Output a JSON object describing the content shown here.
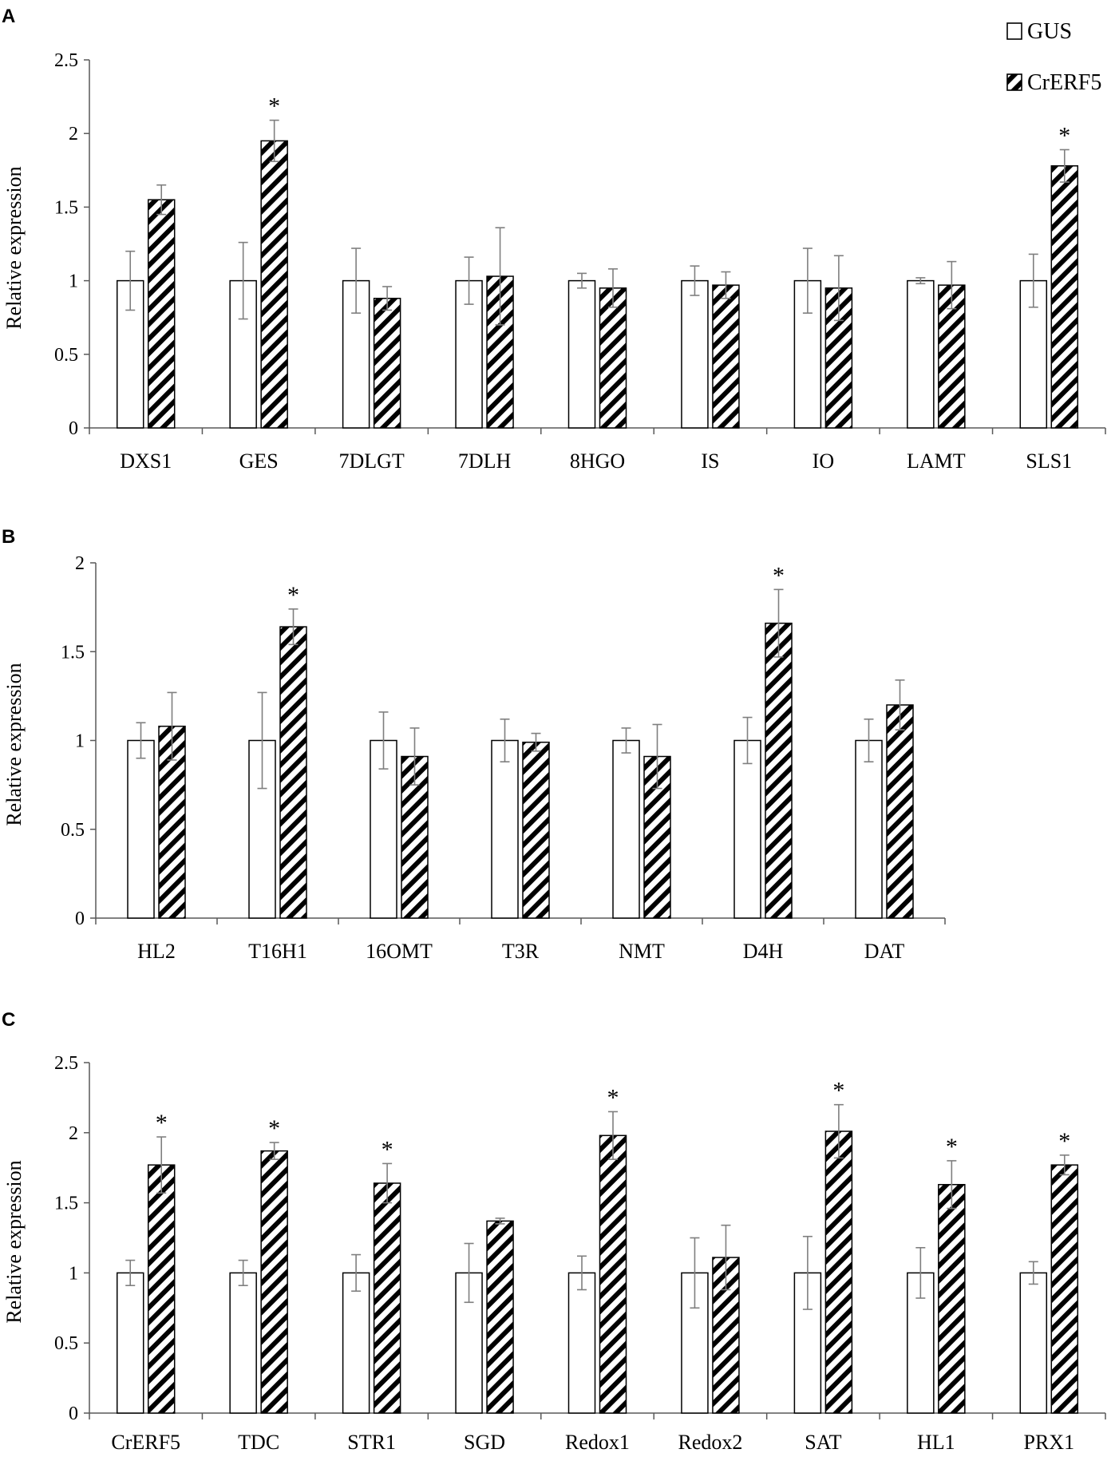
{
  "figure": {
    "legend": {
      "gus": "GUS",
      "crerf5": "CrERF5"
    },
    "colors": {
      "text": "#000000",
      "axis": "#595959",
      "bar_stroke": "#000000",
      "errorbar": "#7f7f7f",
      "gus_fill": "#ffffff",
      "hatch": "#000000"
    }
  },
  "chart_data": [
    {
      "panel": "A",
      "type": "bar",
      "ylabel": "Relative expression",
      "ylim": [
        0,
        2.5
      ],
      "yticks": [
        "0",
        "0.5",
        "1",
        "1.5",
        "2",
        "2.5"
      ],
      "categories": [
        "DXS1",
        "GES",
        "7DLGT",
        "7DLH",
        "8HGO",
        "IS",
        "IO",
        "LAMT",
        "SLS1"
      ],
      "series": [
        {
          "name": "GUS",
          "values": [
            1,
            1,
            1,
            1,
            1,
            1,
            1,
            1,
            1
          ],
          "errors": [
            0.2,
            0.26,
            0.22,
            0.16,
            0.05,
            0.1,
            0.22,
            0.02,
            0.18
          ]
        },
        {
          "name": "CrERF5",
          "values": [
            1.55,
            1.95,
            0.88,
            1.03,
            0.95,
            0.97,
            0.95,
            0.97,
            1.78
          ],
          "errors": [
            0.1,
            0.14,
            0.08,
            0.33,
            0.13,
            0.09,
            0.22,
            0.16,
            0.11
          ]
        }
      ],
      "significance": [
        "",
        "*",
        "",
        "",
        "",
        "",
        "",
        "",
        "*"
      ]
    },
    {
      "panel": "B",
      "type": "bar",
      "ylabel": "Relative expression",
      "ylim": [
        0,
        2
      ],
      "yticks": [
        "0",
        "0.5",
        "1",
        "1.5",
        "2"
      ],
      "categories": [
        "HL2",
        "T16H1",
        "16OMT",
        "T3R",
        "NMT",
        "D4H",
        "DAT"
      ],
      "series": [
        {
          "name": "GUS",
          "values": [
            1,
            1,
            1,
            1,
            1,
            1,
            1
          ],
          "errors": [
            0.1,
            0.27,
            0.16,
            0.12,
            0.07,
            0.13,
            0.12
          ]
        },
        {
          "name": "CrERF5",
          "values": [
            1.08,
            1.64,
            0.91,
            0.99,
            0.91,
            1.66,
            1.2
          ],
          "errors": [
            0.19,
            0.1,
            0.16,
            0.05,
            0.18,
            0.19,
            0.14
          ]
        }
      ],
      "significance": [
        "",
        "*",
        "",
        "",
        "",
        "*",
        ""
      ]
    },
    {
      "panel": "C",
      "type": "bar",
      "ylabel": "Relative expression",
      "ylim": [
        0,
        2.5
      ],
      "yticks": [
        "0",
        "0.5",
        "1",
        "1.5",
        "2",
        "2.5"
      ],
      "categories": [
        "CrERF5",
        "TDC",
        "STR1",
        "SGD",
        "Redox1",
        "Redox2",
        "SAT",
        "HL1",
        "PRX1"
      ],
      "series": [
        {
          "name": "GUS",
          "values": [
            1,
            1,
            1,
            1,
            1,
            1,
            1,
            1,
            1
          ],
          "errors": [
            0.09,
            0.09,
            0.13,
            0.21,
            0.12,
            0.25,
            0.26,
            0.18,
            0.08
          ]
        },
        {
          "name": "CrERF5",
          "values": [
            1.77,
            1.87,
            1.64,
            1.37,
            1.98,
            1.11,
            2.01,
            1.63,
            1.77
          ],
          "errors": [
            0.2,
            0.06,
            0.14,
            0.02,
            0.17,
            0.23,
            0.19,
            0.17,
            0.07
          ]
        }
      ],
      "significance": [
        "*",
        "*",
        "*",
        "",
        "*",
        "",
        "*",
        "*",
        "*"
      ]
    }
  ]
}
